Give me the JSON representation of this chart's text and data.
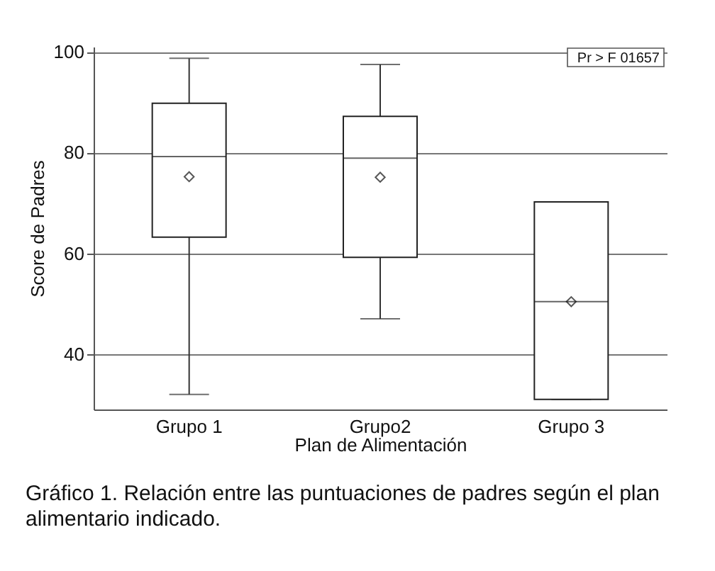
{
  "chart_data": {
    "type": "box",
    "xlabel": "Plan de Alimentación",
    "ylabel": "Score de Padres",
    "categories": [
      "Grupo 1",
      "Grupo2",
      "Grupo 3"
    ],
    "boxes": [
      {
        "low": 32.0,
        "q1": 63.2,
        "median": 79.2,
        "q3": 89.8,
        "high": 98.7,
        "mean": 75.2
      },
      {
        "low": 47.0,
        "q1": 59.2,
        "median": 78.9,
        "q3": 87.2,
        "high": 97.5,
        "mean": 75.1
      },
      {
        "low": 31.0,
        "q1": 31.0,
        "median": 50.4,
        "q3": 70.2,
        "high": 70.2,
        "mean": 50.4
      }
    ],
    "ylim": [
      29,
      101
    ],
    "yticks": [
      40,
      60,
      80,
      100
    ],
    "grid": "y",
    "marker": "diamond",
    "annotations": [
      "Pr > F 01657",
      "Gráfico 1. Relación entre las puntuaciones de padres según el plan alimentario indicado."
    ]
  }
}
